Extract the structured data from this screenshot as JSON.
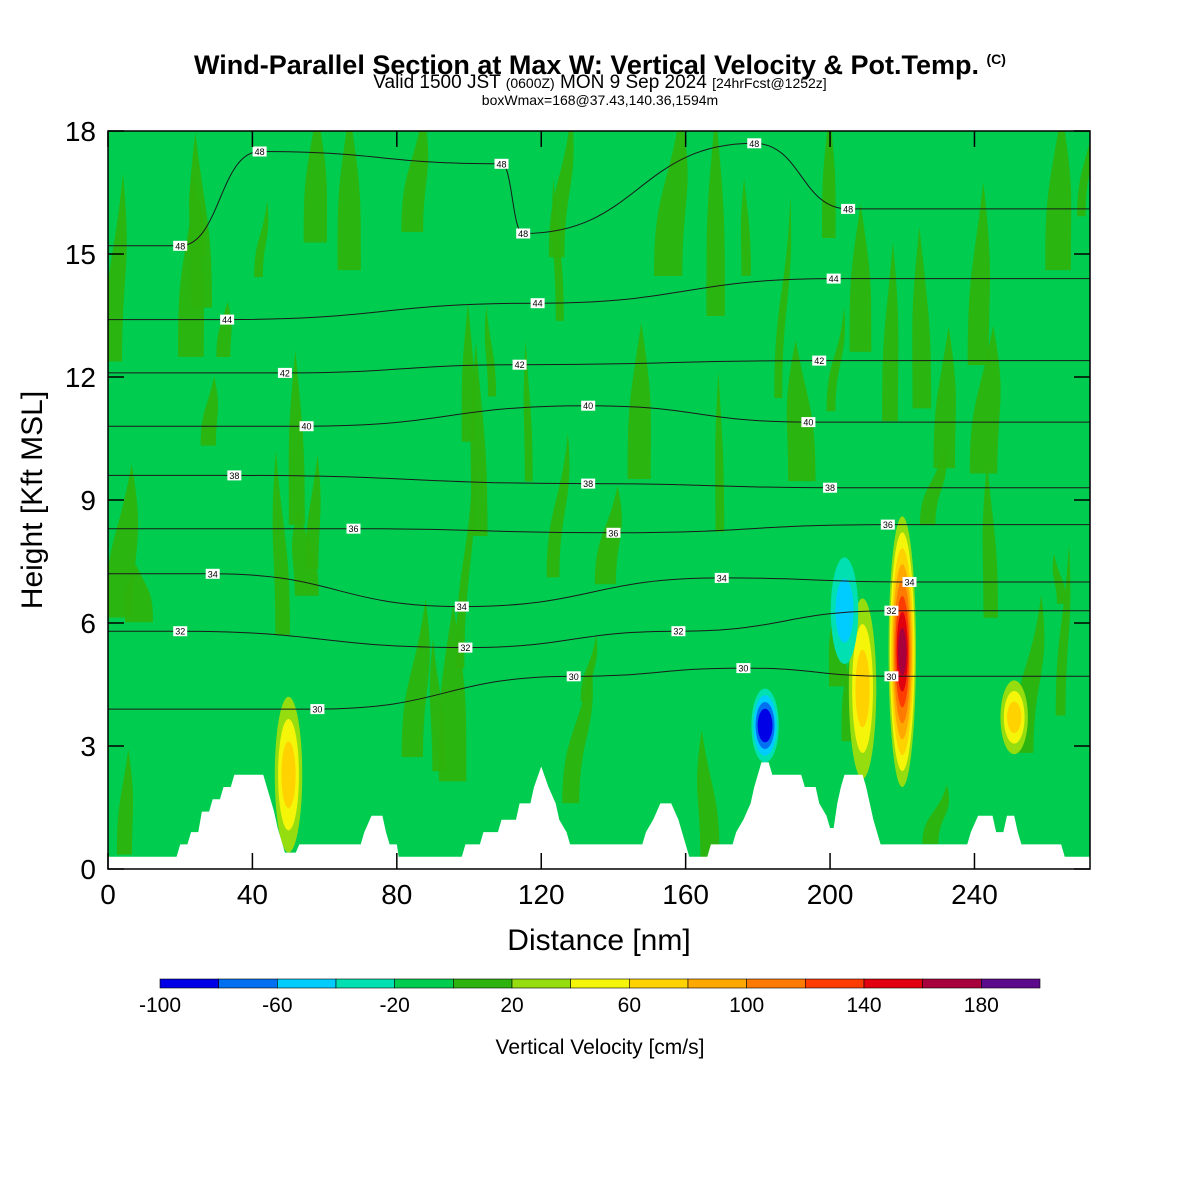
{
  "title": {
    "main": "Wind-Parallel Section at Max W: Vertical Velocity & Pot.Temp.",
    "main_mark": "(C)",
    "line2_a": "Valid 1500 JST",
    "line2_b": "(0600Z)",
    "line2_c": "MON 9 Sep 2024",
    "line2_d": "[24hrFcst@1252z]",
    "line3": "boxWmax=168@37.43,140.36,1594m"
  },
  "chart_data": {
    "type": "heatmap",
    "xlabel": "Distance [nm]",
    "ylabel": "Height [Kft MSL]",
    "xlim": [
      0,
      272
    ],
    "ylim": [
      0,
      18
    ],
    "x_ticks": [
      0,
      40,
      80,
      120,
      160,
      200,
      240
    ],
    "y_ticks": [
      0,
      3,
      6,
      9,
      12,
      15,
      18
    ],
    "colorbar": {
      "label": "Vertical Velocity [cm/s]",
      "range": [
        -100,
        200
      ],
      "step": 20,
      "tick_labels": [
        "-100",
        "-60",
        "-20",
        "20",
        "60",
        "100",
        "140",
        "180"
      ],
      "colors": [
        "#0000e6",
        "#0070f0",
        "#00ccff",
        "#00e0b0",
        "#00cc50",
        "#2db30d",
        "#96dd10",
        "#f5f50a",
        "#ffd200",
        "#ffa800",
        "#ff7a00",
        "#ff3c00",
        "#e00010",
        "#a8003c",
        "#5c0a8c"
      ]
    },
    "background_value_range": [
      -20,
      0
    ],
    "updraft_cores": [
      {
        "x": 50,
        "z_bottom": 0.4,
        "z_top": 4.2,
        "max_w": 60
      },
      {
        "x": 209,
        "z_bottom": 2.2,
        "z_top": 6.6,
        "max_w": 60
      },
      {
        "x": 220,
        "z_bottom": 2.0,
        "z_top": 8.6,
        "max_w": 168
      },
      {
        "x": 251,
        "z_bottom": 2.8,
        "z_top": 4.6,
        "max_w": 60
      }
    ],
    "downdraft_cores": [
      {
        "x": 182,
        "z_bottom": 2.6,
        "z_top": 4.4,
        "min_w": -100
      },
      {
        "x": 204,
        "z_bottom": 5.0,
        "z_top": 7.6,
        "min_w": -40
      }
    ],
    "theta_contour_labels": [
      {
        "value": "48",
        "x": 42,
        "z": 17.5
      },
      {
        "value": "48",
        "x": 109,
        "z": 17.2
      },
      {
        "value": "48",
        "x": 179,
        "z": 17.7
      },
      {
        "value": "48",
        "x": 20,
        "z": 15.2
      },
      {
        "value": "48",
        "x": 115,
        "z": 15.5
      },
      {
        "value": "48",
        "x": 205,
        "z": 16.1
      },
      {
        "value": "44",
        "x": 33,
        "z": 13.4
      },
      {
        "value": "44",
        "x": 119,
        "z": 13.8
      },
      {
        "value": "44",
        "x": 201,
        "z": 14.4
      },
      {
        "value": "42",
        "x": 49,
        "z": 12.1
      },
      {
        "value": "42",
        "x": 114,
        "z": 12.3
      },
      {
        "value": "42",
        "x": 197,
        "z": 12.4
      },
      {
        "value": "40",
        "x": 55,
        "z": 10.8
      },
      {
        "value": "40",
        "x": 133,
        "z": 11.3
      },
      {
        "value": "40",
        "x": 194,
        "z": 10.9
      },
      {
        "value": "38",
        "x": 35,
        "z": 9.6
      },
      {
        "value": "38",
        "x": 133,
        "z": 9.4
      },
      {
        "value": "38",
        "x": 200,
        "z": 9.3
      },
      {
        "value": "36",
        "x": 68,
        "z": 8.3
      },
      {
        "value": "36",
        "x": 140,
        "z": 8.2
      },
      {
        "value": "36",
        "x": 216,
        "z": 8.4
      },
      {
        "value": "34",
        "x": 29,
        "z": 7.2
      },
      {
        "value": "34",
        "x": 98,
        "z": 6.4
      },
      {
        "value": "34",
        "x": 170,
        "z": 7.1
      },
      {
        "value": "34",
        "x": 222,
        "z": 7.0
      },
      {
        "value": "32",
        "x": 20,
        "z": 5.8
      },
      {
        "value": "32",
        "x": 99,
        "z": 5.4
      },
      {
        "value": "32",
        "x": 158,
        "z": 5.8
      },
      {
        "value": "32",
        "x": 217,
        "z": 6.3
      },
      {
        "value": "30",
        "x": 58,
        "z": 3.9
      },
      {
        "value": "30",
        "x": 129,
        "z": 4.7
      },
      {
        "value": "30",
        "x": 176,
        "z": 4.9
      },
      {
        "value": "30",
        "x": 217,
        "z": 4.7
      }
    ],
    "terrain": [
      [
        0,
        0.3
      ],
      [
        19,
        0.3
      ],
      [
        20,
        0.6
      ],
      [
        22,
        0.6
      ],
      [
        23,
        0.9
      ],
      [
        25,
        0.9
      ],
      [
        26,
        1.4
      ],
      [
        28,
        1.4
      ],
      [
        29,
        1.7
      ],
      [
        31,
        1.7
      ],
      [
        32,
        2.0
      ],
      [
        34,
        2.0
      ],
      [
        35,
        2.3
      ],
      [
        43,
        2.3
      ],
      [
        44,
        2.0
      ],
      [
        45,
        1.7
      ],
      [
        46,
        1.4
      ],
      [
        47,
        1.0
      ],
      [
        48,
        0.7
      ],
      [
        49,
        0.4
      ],
      [
        52,
        0.4
      ],
      [
        53,
        0.6
      ],
      [
        70,
        0.6
      ],
      [
        71,
        0.9
      ],
      [
        73,
        1.3
      ],
      [
        76,
        1.3
      ],
      [
        77,
        0.9
      ],
      [
        78,
        0.6
      ],
      [
        80,
        0.6
      ],
      [
        80.5,
        0.3
      ],
      [
        98,
        0.3
      ],
      [
        99,
        0.6
      ],
      [
        103,
        0.6
      ],
      [
        104,
        0.9
      ],
      [
        108,
        0.9
      ],
      [
        109,
        1.2
      ],
      [
        113,
        1.2
      ],
      [
        114,
        1.6
      ],
      [
        117,
        1.6
      ],
      [
        118,
        2.0
      ],
      [
        120,
        2.5
      ],
      [
        122,
        2.0
      ],
      [
        124,
        1.6
      ],
      [
        125,
        1.2
      ],
      [
        127,
        0.9
      ],
      [
        128,
        0.6
      ],
      [
        148,
        0.6
      ],
      [
        149,
        0.9
      ],
      [
        151,
        1.2
      ],
      [
        153,
        1.6
      ],
      [
        156,
        1.6
      ],
      [
        158,
        1.2
      ],
      [
        159,
        0.9
      ],
      [
        160,
        0.6
      ],
      [
        161,
        0.3
      ],
      [
        166,
        0.3
      ],
      [
        167,
        0.6
      ],
      [
        173,
        0.6
      ],
      [
        174,
        0.9
      ],
      [
        176,
        1.2
      ],
      [
        178,
        1.6
      ],
      [
        179,
        2.0
      ],
      [
        180,
        2.3
      ],
      [
        181,
        2.6
      ],
      [
        183,
        2.6
      ],
      [
        184,
        2.3
      ],
      [
        192,
        2.3
      ],
      [
        193,
        2.0
      ],
      [
        196,
        2.0
      ],
      [
        197,
        1.6
      ],
      [
        199,
        1.3
      ],
      [
        200,
        1.0
      ],
      [
        201,
        1.0
      ],
      [
        202,
        1.6
      ],
      [
        203,
        2.0
      ],
      [
        204,
        2.3
      ],
      [
        209,
        2.3
      ],
      [
        210,
        2.0
      ],
      [
        211,
        1.6
      ],
      [
        212,
        1.2
      ],
      [
        213,
        0.9
      ],
      [
        214,
        0.6
      ],
      [
        238,
        0.6
      ],
      [
        239,
        0.9
      ],
      [
        241,
        1.3
      ],
      [
        245,
        1.3
      ],
      [
        246,
        0.9
      ],
      [
        248,
        0.9
      ],
      [
        249,
        1.3
      ],
      [
        251,
        1.3
      ],
      [
        252,
        0.9
      ],
      [
        253,
        0.6
      ],
      [
        264,
        0.6
      ],
      [
        265,
        0.3
      ],
      [
        272,
        0.3
      ]
    ]
  }
}
